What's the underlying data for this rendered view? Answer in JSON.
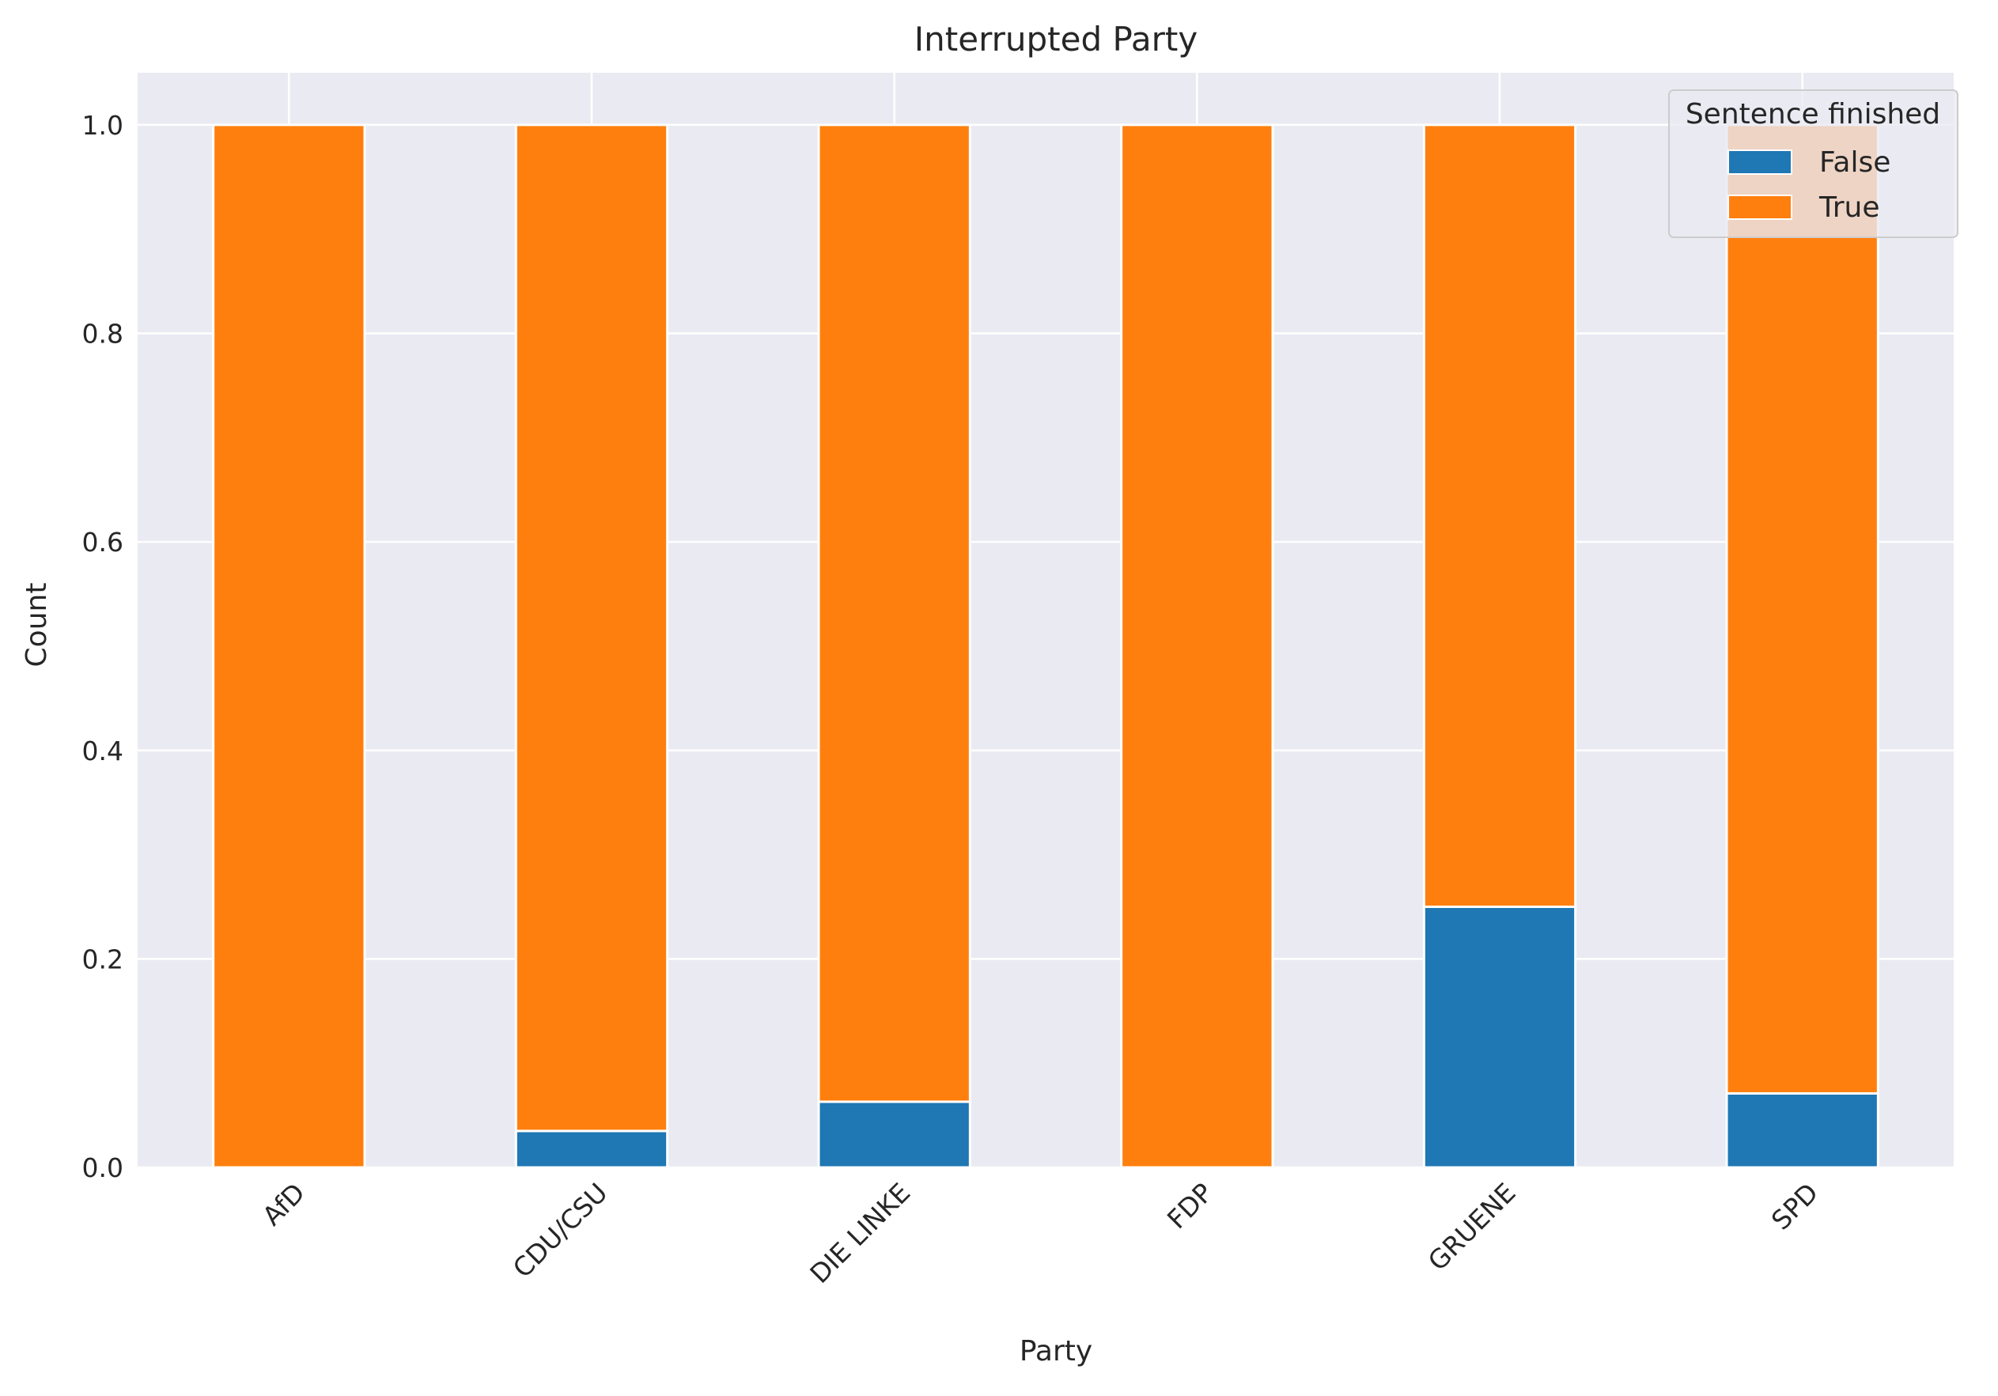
{
  "chart_data": {
    "type": "bar",
    "stacked": true,
    "title": "Interrupted Party",
    "xlabel": "Party",
    "ylabel": "Count",
    "categories": [
      "AfD",
      "CDU/CSU",
      "DIE LINKE",
      "FDP",
      "GRUENE",
      "SPD"
    ],
    "series": [
      {
        "name": "False",
        "color": "#1f77b4",
        "values": [
          0.0,
          0.035,
          0.063,
          0.0,
          0.25,
          0.071
        ]
      },
      {
        "name": "True",
        "color": "#ff7f0e",
        "values": [
          1.0,
          0.965,
          0.937,
          1.0,
          0.75,
          0.929
        ]
      }
    ],
    "ylim": [
      0,
      1.05
    ],
    "yticks": [
      0.0,
      0.2,
      0.4,
      0.6,
      0.8,
      1.0
    ],
    "ytick_labels": [
      "0.0",
      "0.2",
      "0.4",
      "0.6",
      "0.8",
      "1.0"
    ],
    "grid": true,
    "legend": {
      "title": "Sentence finished",
      "placement": "top-right"
    },
    "style": {
      "background": "#eaeaf2",
      "grid_color": "#ffffff"
    }
  }
}
